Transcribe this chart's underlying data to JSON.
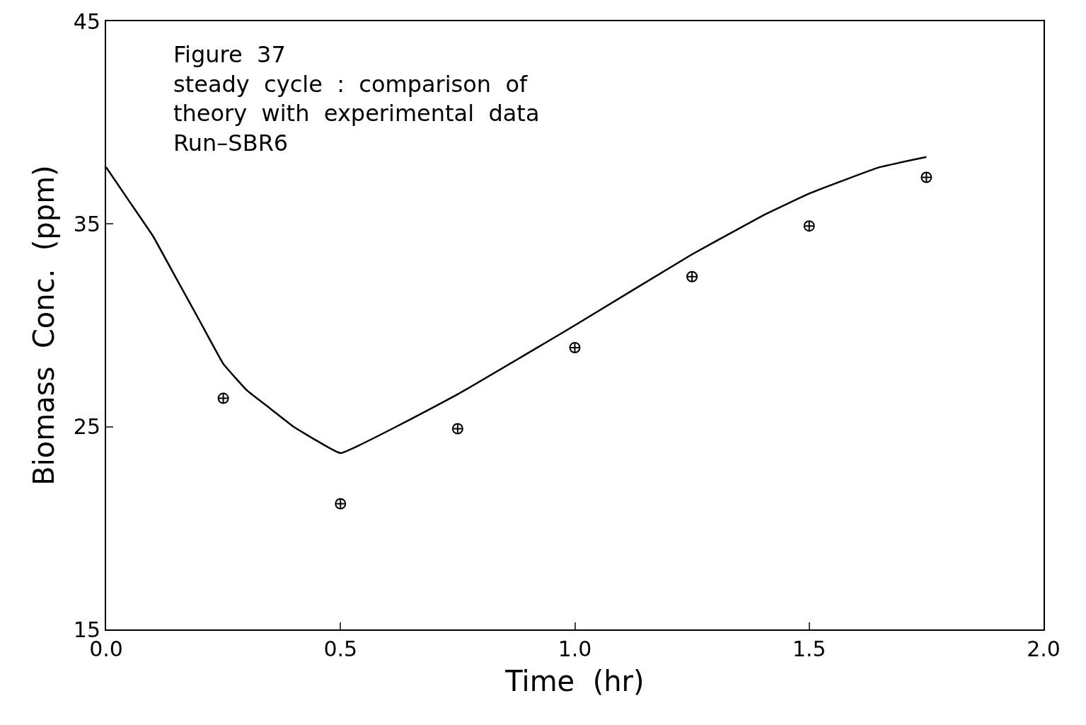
{
  "chart_data": {
    "type": "line",
    "xlabel": "Time  (hr)",
    "ylabel": "Biomass  Conc.  (ppm)",
    "annotations": [
      "Figure  37\nsteady  cycle  :  comparison  of\ntheory  with  experimental  data\nRun–SBR6"
    ],
    "series": [
      {
        "color": "#000000",
        "marker": "none",
        "x": [
          0,
          0.05,
          0.1,
          0.15,
          0.2,
          0.25,
          0.3,
          0.35,
          0.4,
          0.45,
          0.5,
          0.75,
          1.0,
          1.25,
          1.4,
          1.5,
          1.65,
          1.75
        ],
        "values": [
          37.8,
          36.1,
          34.4,
          32.3,
          30.2,
          28.1,
          26.8,
          25.9,
          25.0,
          24.3,
          23.7,
          26.6,
          30.0,
          33.5,
          35.4,
          36.5,
          37.8,
          38.3
        ]
      },
      {
        "type": "scatter",
        "color": "#000000",
        "marker": "cross",
        "x": [
          0.25,
          0.5,
          0.75,
          1.0,
          1.25,
          1.5,
          1.75
        ],
        "values": [
          26.4,
          21.2,
          24.9,
          28.9,
          32.4,
          34.9,
          37.3
        ]
      }
    ],
    "xlim": [
      0,
      2
    ],
    "xticks": [
      {
        "value": 0,
        "label": "0.0"
      },
      {
        "value": 0.5,
        "label": "0.5"
      },
      {
        "value": 1,
        "label": "1.0"
      },
      {
        "value": 1.5,
        "label": "1.5"
      },
      {
        "value": 2,
        "label": "2.0"
      }
    ],
    "ylim": [
      15,
      45
    ],
    "yticks": [
      15,
      25,
      35,
      45
    ],
    "grid": false,
    "legend": false
  }
}
